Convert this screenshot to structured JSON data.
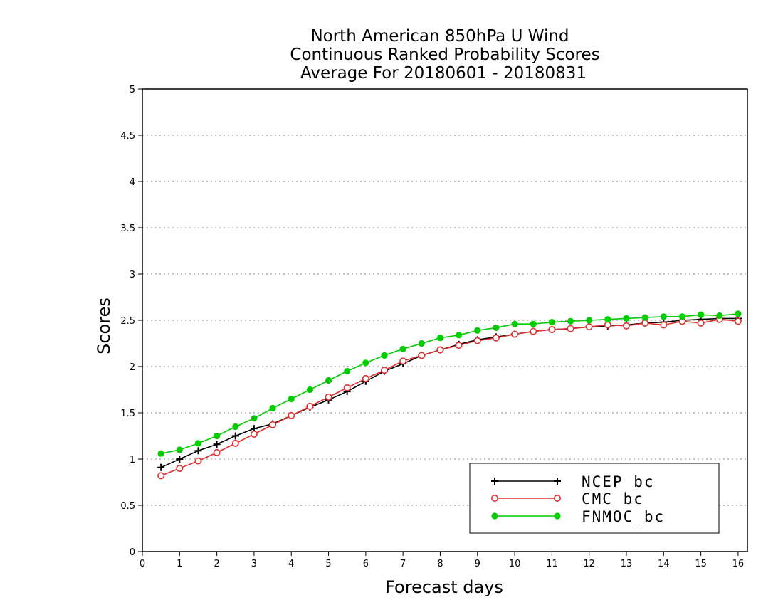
{
  "chart_data": {
    "type": "line",
    "title": [
      "North American 850hPa U Wind",
      "Continuous Ranked Probability Scores",
      "Average For 20180601 - 20180831"
    ],
    "xlabel": "Forecast days",
    "ylabel": "Scores",
    "xlim": [
      0,
      16.25
    ],
    "ylim": [
      0,
      5
    ],
    "xticks": [
      0,
      1,
      2,
      3,
      4,
      5,
      6,
      7,
      8,
      9,
      10,
      11,
      12,
      13,
      14,
      15,
      16
    ],
    "yticks": [
      0,
      0.5,
      1,
      1.5,
      2,
      2.5,
      3,
      3.5,
      4,
      4.5,
      5
    ],
    "ytick_labels": [
      "0",
      "0.5",
      "1",
      "1.5",
      "2",
      "2.5",
      "3",
      "3.5",
      "4",
      "4.5",
      "5"
    ],
    "grid": "horizontal dotted",
    "legend_position": "bottom-right",
    "x": [
      0.5,
      1,
      1.5,
      2,
      2.5,
      3,
      3.5,
      4,
      4.5,
      5,
      5.5,
      6,
      6.5,
      7,
      7.5,
      8,
      8.5,
      9,
      9.5,
      10,
      10.5,
      11,
      11.5,
      12,
      12.5,
      13,
      13.5,
      14,
      14.5,
      15,
      15.5,
      16
    ],
    "series": [
      {
        "name": "NCEP_bc",
        "color": "#000000",
        "marker": "plus",
        "values": [
          0.91,
          1.0,
          1.09,
          1.16,
          1.25,
          1.33,
          1.38,
          1.47,
          1.56,
          1.64,
          1.73,
          1.84,
          1.95,
          2.03,
          2.12,
          2.18,
          2.24,
          2.29,
          2.32,
          2.35,
          2.38,
          2.4,
          2.41,
          2.43,
          2.44,
          2.45,
          2.47,
          2.48,
          2.5,
          2.51,
          2.52,
          2.52
        ]
      },
      {
        "name": "CMC_bc",
        "color": "#e03030",
        "marker": "open-circle",
        "values": [
          0.82,
          0.9,
          0.98,
          1.07,
          1.17,
          1.27,
          1.37,
          1.47,
          1.57,
          1.67,
          1.77,
          1.87,
          1.96,
          2.06,
          2.12,
          2.18,
          2.23,
          2.28,
          2.31,
          2.35,
          2.38,
          2.4,
          2.41,
          2.43,
          2.45,
          2.44,
          2.47,
          2.45,
          2.49,
          2.47,
          2.51,
          2.49
        ]
      },
      {
        "name": "FNMOC_bc",
        "color": "#00cc00",
        "marker": "filled-circle",
        "values": [
          1.06,
          1.1,
          1.17,
          1.25,
          1.35,
          1.44,
          1.55,
          1.65,
          1.75,
          1.85,
          1.95,
          2.04,
          2.12,
          2.19,
          2.25,
          2.31,
          2.34,
          2.39,
          2.42,
          2.46,
          2.46,
          2.48,
          2.49,
          2.5,
          2.51,
          2.52,
          2.53,
          2.54,
          2.54,
          2.56,
          2.55,
          2.57
        ]
      }
    ]
  }
}
